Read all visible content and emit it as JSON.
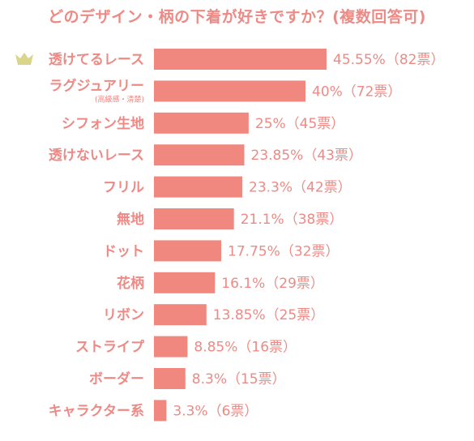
{
  "chart_data": {
    "type": "bar",
    "orientation": "horizontal",
    "title": "どのデザイン・柄の下着が好きですか？(複数回答可)",
    "xlabel": "",
    "ylabel": "",
    "xlim": [
      0,
      50
    ],
    "grid": false,
    "legend": "none",
    "bar_color": "#f08880",
    "text_color": "#ee8a85",
    "top_marker_icon": "crown-icon",
    "top_marker_color": "#d9d58a",
    "categories": [
      "透けてるレース",
      "ラグジュアリー",
      "シフォン生地",
      "透けないレース",
      "フリル",
      "無地",
      "ドット",
      "花柄",
      "リボン",
      "ストライプ",
      "ボーダー",
      "キャラクター系"
    ],
    "sublabels": [
      "",
      "(高級感・清楚)",
      "",
      "",
      "",
      "",
      "",
      "",
      "",
      "",
      "",
      ""
    ],
    "values": [
      45.55,
      40,
      25,
      23.85,
      23.3,
      21.1,
      17.75,
      16.1,
      13.85,
      8.85,
      8.3,
      3.3
    ],
    "votes": [
      82,
      72,
      45,
      43,
      42,
      38,
      32,
      29,
      25,
      16,
      15,
      6
    ],
    "data_labels": [
      "45.55%（82票）",
      "40%（72票）",
      "25%（45票）",
      "23.85%（43票）",
      "23.3%（42票）",
      "21.1%（38票）",
      "17.75%（32票）",
      "16.1%（29票）",
      "13.85%（25票）",
      "8.85%（16票）",
      "8.3%（15票）",
      "3.3%（6票）"
    ]
  }
}
